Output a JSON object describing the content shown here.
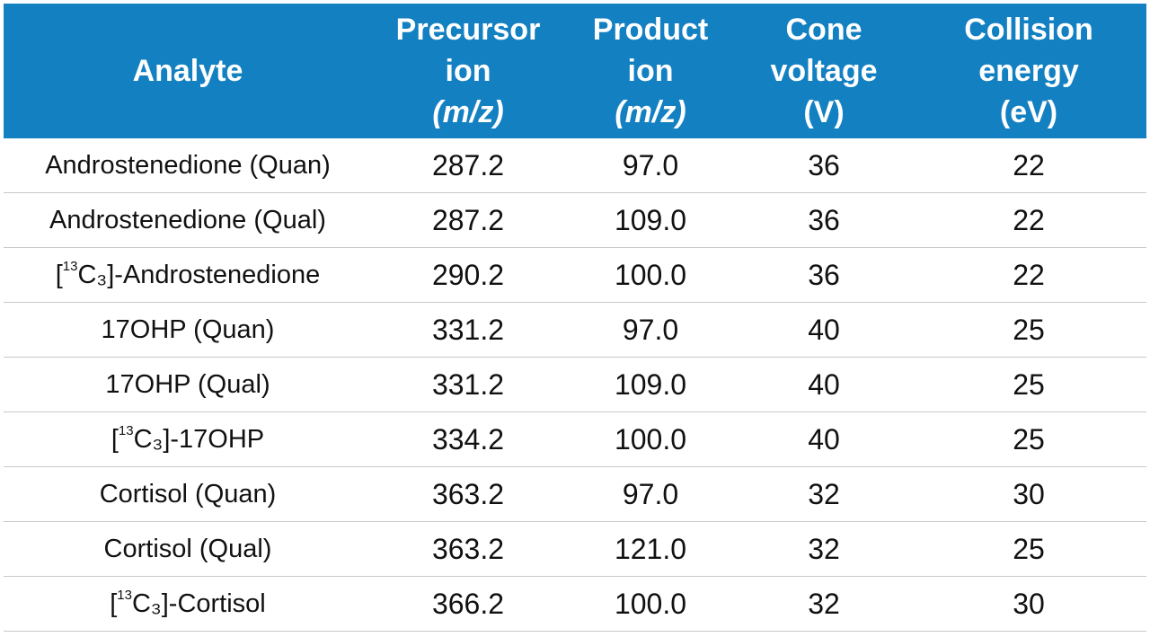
{
  "table": {
    "headers": [
      {
        "lines": [
          "Analyte"
        ],
        "unit": ""
      },
      {
        "lines": [
          "Precursor",
          "ion"
        ],
        "unit": "(m/z)"
      },
      {
        "lines": [
          "Product",
          "ion"
        ],
        "unit": "(m/z)"
      },
      {
        "lines": [
          "Cone",
          "voltage",
          "(V)"
        ],
        "unit": ""
      },
      {
        "lines": [
          "Collision",
          "energy",
          "(eV)"
        ],
        "unit": ""
      }
    ],
    "rows": [
      {
        "analyte": {
          "prefix": "",
          "iso": "",
          "name": "Androstenedione (Quan)"
        },
        "precursor": "287.2",
        "product": "97.0",
        "cone": "36",
        "collision": "22"
      },
      {
        "analyte": {
          "prefix": "",
          "iso": "",
          "name": "Androstenedione (Qual)"
        },
        "precursor": "287.2",
        "product": "109.0",
        "cone": "36",
        "collision": "22"
      },
      {
        "analyte": {
          "prefix": "[",
          "iso": "13",
          "name": "C₃]-Androstenedione"
        },
        "precursor": "290.2",
        "product": "100.0",
        "cone": "36",
        "collision": "22"
      },
      {
        "analyte": {
          "prefix": "",
          "iso": "",
          "name": "17OHP (Quan)"
        },
        "precursor": "331.2",
        "product": "97.0",
        "cone": "40",
        "collision": "25"
      },
      {
        "analyte": {
          "prefix": "",
          "iso": "",
          "name": "17OHP (Qual)"
        },
        "precursor": "331.2",
        "product": "109.0",
        "cone": "40",
        "collision": "25"
      },
      {
        "analyte": {
          "prefix": "[",
          "iso": "13",
          "name": "C₃]-17OHP"
        },
        "precursor": "334.2",
        "product": "100.0",
        "cone": "40",
        "collision": "25"
      },
      {
        "analyte": {
          "prefix": "",
          "iso": "",
          "name": "Cortisol (Quan)"
        },
        "precursor": "363.2",
        "product": "97.0",
        "cone": "32",
        "collision": "30"
      },
      {
        "analyte": {
          "prefix": "",
          "iso": "",
          "name": "Cortisol (Qual)"
        },
        "precursor": "363.2",
        "product": "121.0",
        "cone": "32",
        "collision": "25"
      },
      {
        "analyte": {
          "prefix": "[",
          "iso": "13",
          "name": "C₃]-Cortisol"
        },
        "precursor": "366.2",
        "product": "100.0",
        "cone": "32",
        "collision": "30"
      }
    ]
  },
  "colors": {
    "header_bg": "#1380c2",
    "header_text": "#ffffff",
    "body_text": "#111111",
    "row_divider": "#c9c9c9"
  }
}
